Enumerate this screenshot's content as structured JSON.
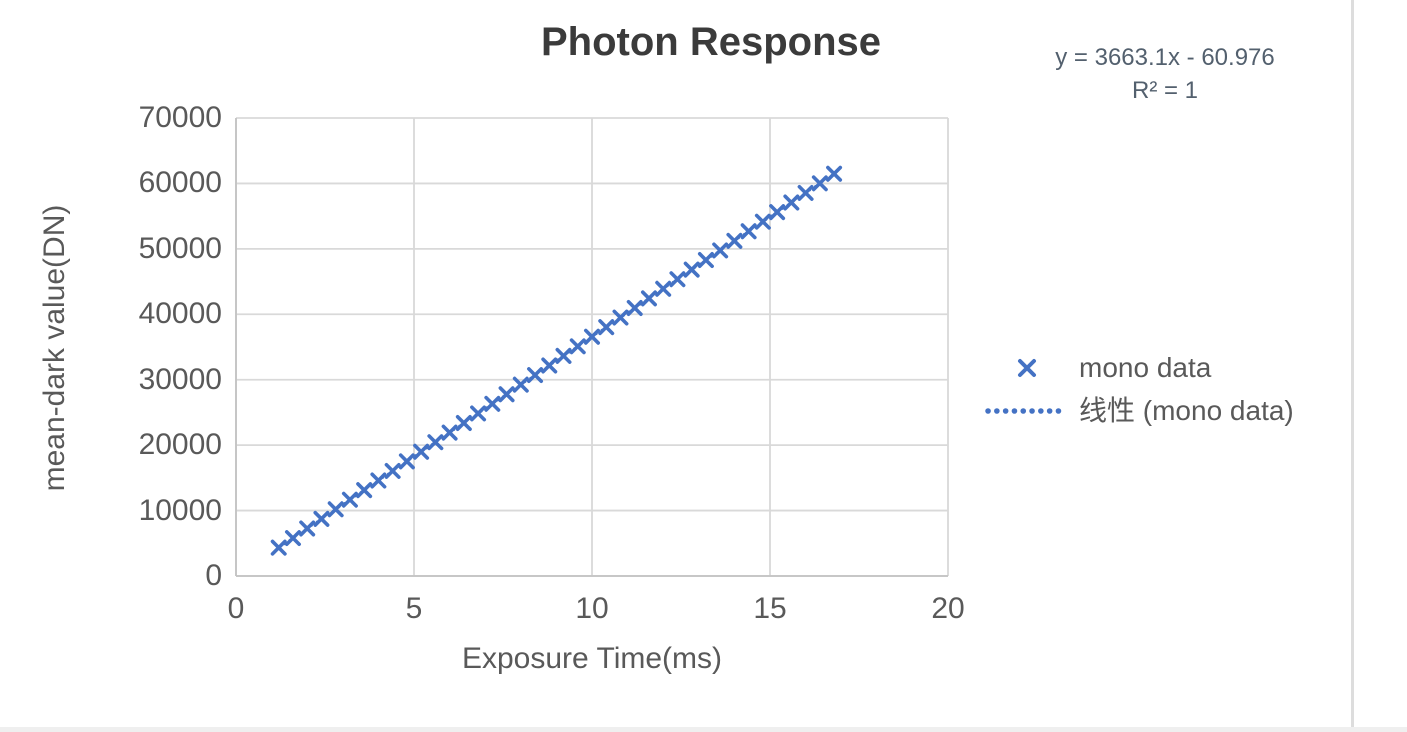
{
  "chart_data": {
    "type": "scatter",
    "title": "Photon Response",
    "xlabel": "Exposure Time(ms)",
    "ylabel": "mean-dark value(DN)",
    "xlim": [
      0,
      20
    ],
    "ylim": [
      0,
      70000
    ],
    "x_ticks": [
      0,
      5,
      10,
      15,
      20
    ],
    "y_ticks": [
      0,
      10000,
      20000,
      30000,
      40000,
      50000,
      60000,
      70000
    ],
    "grid": true,
    "legend_position": "right",
    "annotation": {
      "line1": "y = 3663.1x - 60.976",
      "line2": "R² = 1"
    },
    "series": [
      {
        "name": "mono data",
        "marker": "x",
        "color": "#4472C4",
        "x": [
          1.2,
          1.6,
          2.0,
          2.4,
          2.8,
          3.2,
          3.6,
          4.0,
          4.4,
          4.8,
          5.2,
          5.6,
          6.0,
          6.4,
          6.8,
          7.2,
          7.6,
          8.0,
          8.4,
          8.8,
          9.2,
          9.6,
          10.0,
          10.4,
          10.8,
          11.2,
          11.6,
          12.0,
          12.4,
          12.8,
          13.2,
          13.6,
          14.0,
          14.4,
          14.8,
          15.2,
          15.6,
          16.0,
          16.4,
          16.8
        ],
        "y": [
          4335,
          5800,
          7265,
          8730,
          10196,
          11661,
          13126,
          14591,
          16057,
          17522,
          18987,
          20452,
          21918,
          23383,
          24848,
          26313,
          27779,
          29244,
          30709,
          32174,
          33640,
          35105,
          36570,
          38035,
          39501,
          40966,
          42431,
          43896,
          45361,
          46827,
          48292,
          49757,
          51222,
          52688,
          54153,
          55618,
          57083,
          58549,
          60014,
          61479
        ]
      }
    ],
    "trendline": {
      "label": "线性 (mono data)",
      "slope": 3663.1,
      "intercept": -60.976,
      "style": "dotted",
      "color": "#4472C4"
    },
    "legend": [
      {
        "label": "mono data",
        "sample": "x-marker"
      },
      {
        "label": "线性 (mono data)",
        "sample": "dotted-line"
      }
    ],
    "colors": {
      "series": "#4472C4",
      "gridline": "#d9d9d9",
      "axis_line": "#c3c3c3",
      "tick_text": "#595959",
      "title_text": "#3b3b3b",
      "equation_text": "#53606e"
    }
  }
}
